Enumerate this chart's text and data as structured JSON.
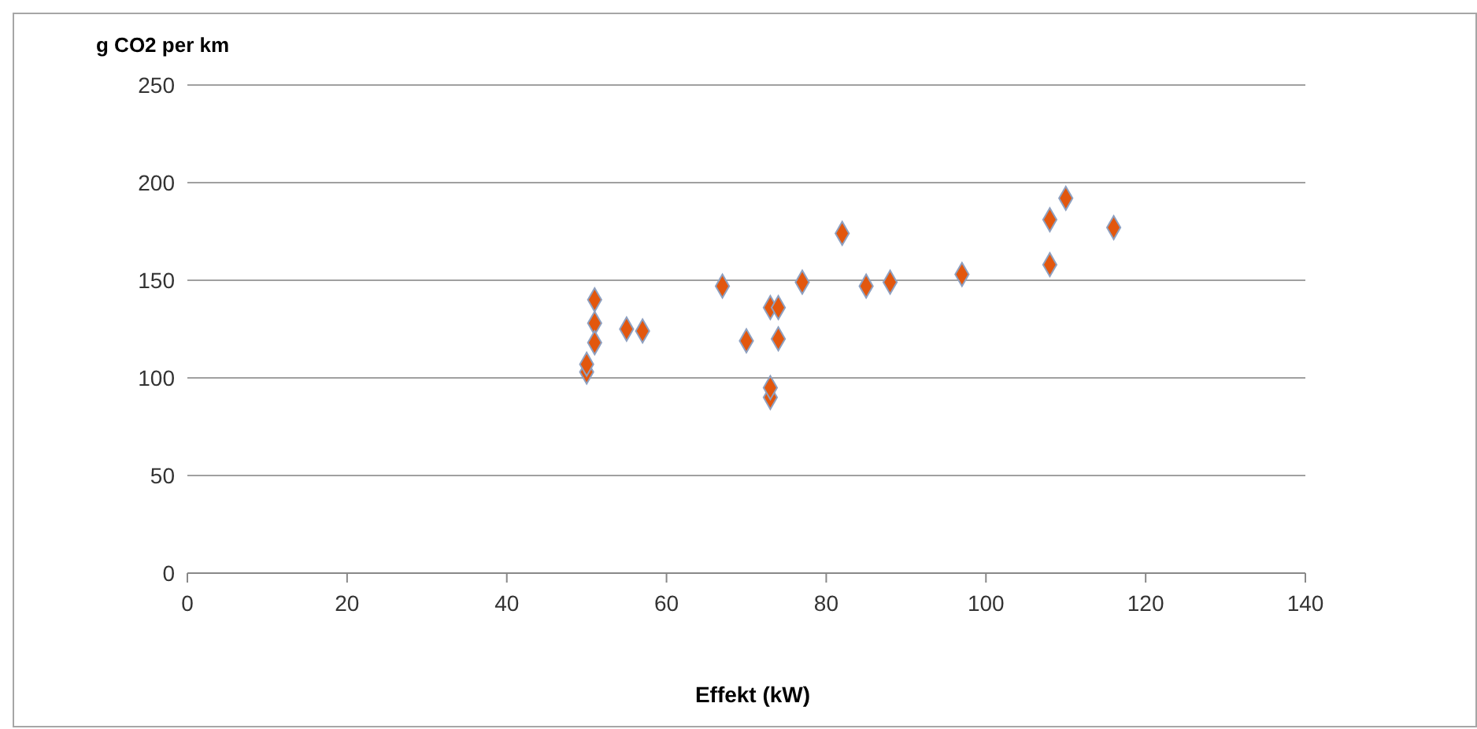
{
  "chart_data": {
    "type": "scatter",
    "ylabel": "g CO2 per km",
    "xlabel": "Effekt (kW)",
    "x": [
      50,
      50,
      51,
      51,
      51,
      55,
      57,
      67,
      70,
      73,
      73,
      73,
      74,
      74,
      77,
      82,
      85,
      88,
      97,
      108,
      108,
      110,
      116
    ],
    "values": [
      103,
      107,
      140,
      128,
      118,
      125,
      124,
      147,
      119,
      90,
      95,
      136,
      136,
      120,
      149,
      174,
      147,
      149,
      153,
      181,
      158,
      192,
      177
    ],
    "color": "#e2570e",
    "marker": "diamond",
    "grid": "y",
    "xlim": [
      0,
      140
    ],
    "xticks": [
      0,
      20,
      40,
      60,
      80,
      100,
      120,
      140
    ],
    "ylim": [
      0,
      250
    ],
    "yticks": [
      0,
      50,
      100,
      150,
      200,
      250
    ],
    "legend": false
  }
}
